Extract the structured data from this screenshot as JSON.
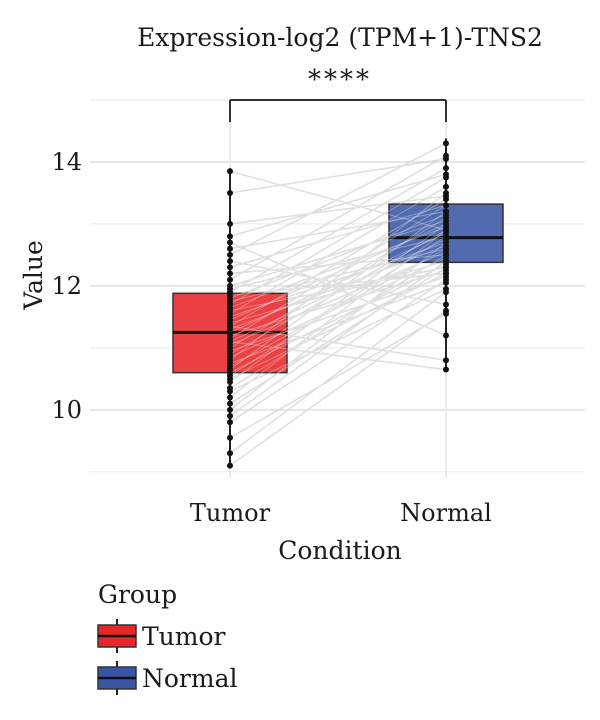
{
  "chart_data": {
    "type": "box",
    "title": "Expression-log2 (TPM+1)-TNS2",
    "xlabel": "Condition",
    "ylabel": "Value",
    "categories": [
      "Tumor",
      "Normal"
    ],
    "ylim": [
      8.9,
      15.0
    ],
    "yticks": [
      10,
      12,
      14
    ],
    "grid": true,
    "paired": true,
    "significance": "****",
    "legend": {
      "title": "Group",
      "position": "bottom-left",
      "entries": [
        {
          "label": "Tumor",
          "color": "#e8262a"
        },
        {
          "label": "Normal",
          "color": "#3a55a4"
        }
      ]
    },
    "boxes": [
      {
        "name": "Tumor",
        "color": "#e8262a",
        "q1": 10.6,
        "median": 11.25,
        "q3": 11.88,
        "whisker_low": 9.1,
        "whisker_high": 13.9
      },
      {
        "name": "Normal",
        "color": "#3a55a4",
        "q1": 12.38,
        "median": 12.78,
        "q3": 13.32,
        "whisker_low": 10.65,
        "whisker_high": 14.38
      }
    ],
    "pairs": [
      [
        9.1,
        11.6
      ],
      [
        9.3,
        11.9
      ],
      [
        9.55,
        11.55
      ],
      [
        9.8,
        12.1
      ],
      [
        9.9,
        12.4
      ],
      [
        10.0,
        12.7
      ],
      [
        10.1,
        12.3
      ],
      [
        10.2,
        12.9
      ],
      [
        10.3,
        11.95
      ],
      [
        10.35,
        12.5
      ],
      [
        10.45,
        13.0
      ],
      [
        10.5,
        12.2
      ],
      [
        10.55,
        12.8
      ],
      [
        10.6,
        12.35
      ],
      [
        10.65,
        13.2
      ],
      [
        10.7,
        12.6
      ],
      [
        10.75,
        12.05
      ],
      [
        10.8,
        13.5
      ],
      [
        10.85,
        12.45
      ],
      [
        10.9,
        12.9
      ],
      [
        10.95,
        12.15
      ],
      [
        11.0,
        13.1
      ],
      [
        11.05,
        12.55
      ],
      [
        11.1,
        12.75
      ],
      [
        11.15,
        13.3
      ],
      [
        11.2,
        12.25
      ],
      [
        11.25,
        12.85
      ],
      [
        11.3,
        12.65
      ],
      [
        11.35,
        13.4
      ],
      [
        11.4,
        12.4
      ],
      [
        11.45,
        13.0
      ],
      [
        11.5,
        12.7
      ],
      [
        11.55,
        13.6
      ],
      [
        11.6,
        12.3
      ],
      [
        11.65,
        12.95
      ],
      [
        11.7,
        13.75
      ],
      [
        11.75,
        12.6
      ],
      [
        11.8,
        13.15
      ],
      [
        11.85,
        12.2
      ],
      [
        11.9,
        13.9
      ],
      [
        11.95,
        12.8
      ],
      [
        12.0,
        13.05
      ],
      [
        12.1,
        14.1
      ],
      [
        12.2,
        12.5
      ],
      [
        12.3,
        13.3
      ],
      [
        12.4,
        11.7
      ],
      [
        12.5,
        14.3
      ],
      [
        12.6,
        13.2
      ],
      [
        12.7,
        11.2
      ],
      [
        12.8,
        13.8
      ],
      [
        13.0,
        13.45
      ],
      [
        13.5,
        14.05
      ],
      [
        13.85,
        12.9
      ],
      [
        11.35,
        10.8
      ],
      [
        11.1,
        10.65
      ]
    ]
  }
}
